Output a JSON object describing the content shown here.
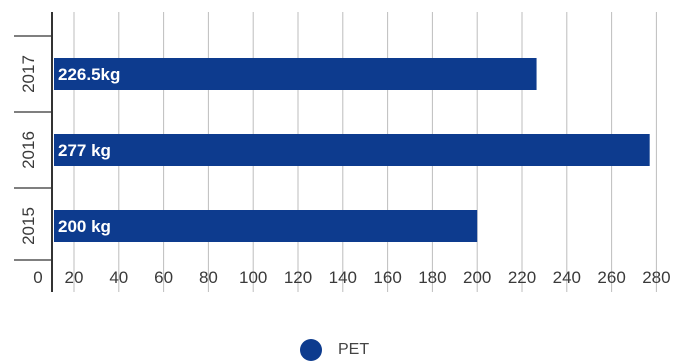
{
  "chart_data": {
    "type": "bar",
    "orientation": "horizontal",
    "categories": [
      "2015",
      "2016",
      "2017"
    ],
    "series": [
      {
        "name": "PET",
        "values": [
          200,
          277,
          226.5
        ],
        "labels": [
          "200 kg",
          "277 kg",
          "226.5kg"
        ],
        "color": "#0d3b8e"
      }
    ],
    "xticks": [
      "0",
      "20",
      "40",
      "60",
      "80",
      "100",
      "120",
      "140",
      "160",
      "180",
      "200",
      "220",
      "240",
      "260",
      "280"
    ],
    "xlim": [
      0,
      280
    ],
    "grid": true,
    "legend_position": "bottom"
  }
}
